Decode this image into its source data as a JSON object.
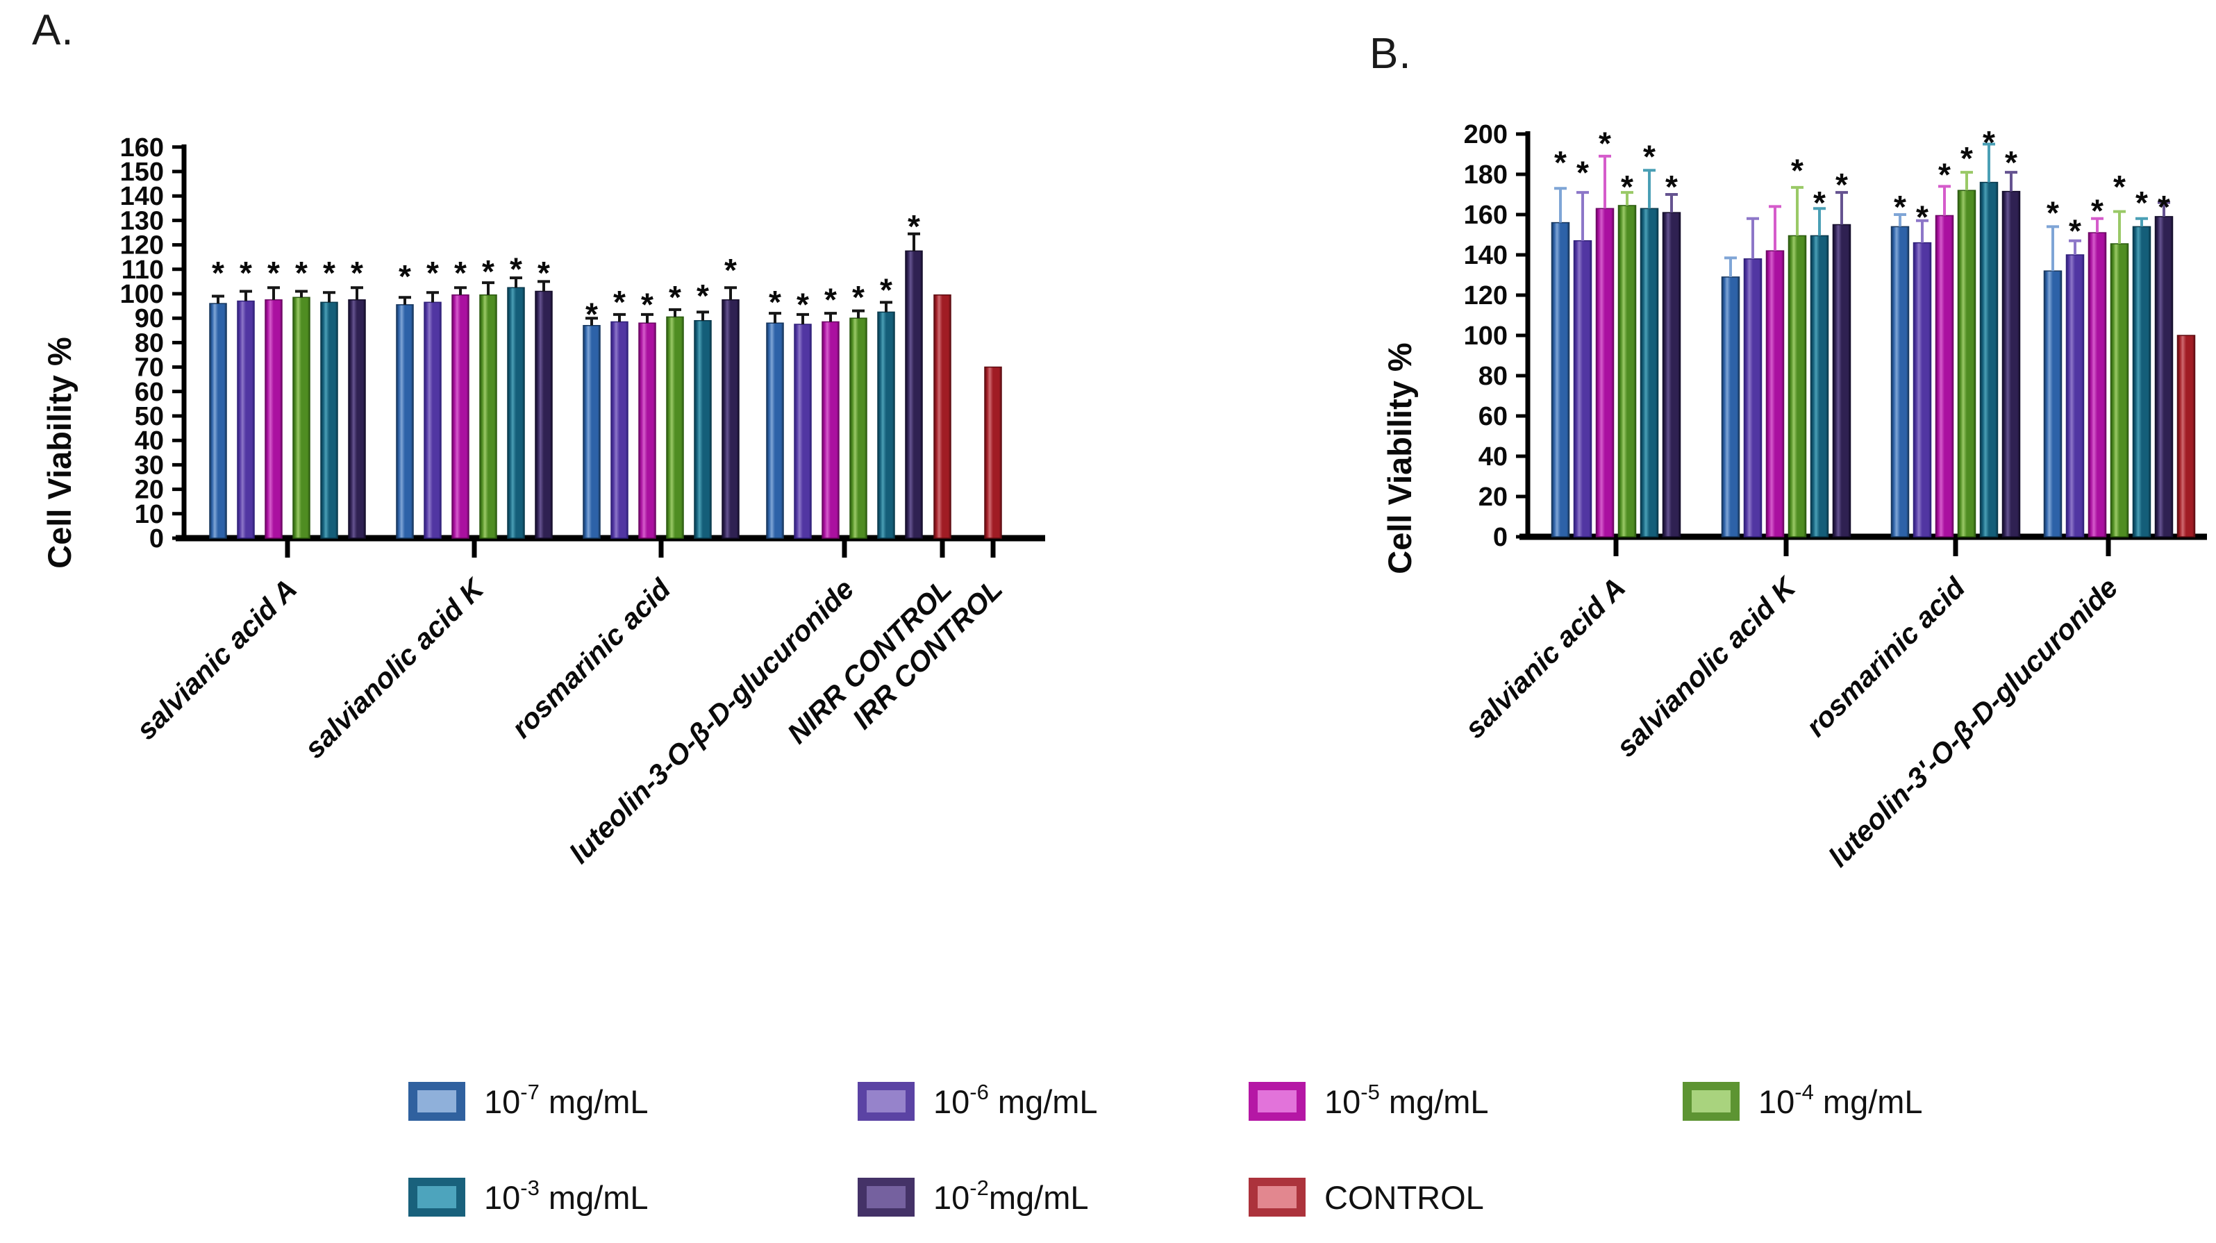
{
  "panels": {
    "a": {
      "label": "A."
    },
    "b": {
      "label": "B."
    }
  },
  "palette": {
    "c1e7": {
      "name": "blue",
      "main": "#2d62a8",
      "light": "#7fa5d6",
      "edge": "#17375e",
      "legend_outer": "#30619f",
      "legend_inner": "#8fb0da"
    },
    "c1e6": {
      "name": "purple",
      "main": "#5136a2",
      "light": "#8d77c8",
      "edge": "#31217a",
      "legend_outer": "#5b43a4",
      "legend_inner": "#9683cb"
    },
    "c1e5": {
      "name": "magenta",
      "main": "#aa10a0",
      "light": "#d55ccb",
      "edge": "#6d0764",
      "legend_outer": "#b517a5",
      "legend_inner": "#e273da"
    },
    "c1e4": {
      "name": "green",
      "main": "#4f8d22",
      "light": "#9ac967",
      "edge": "#2c5b10",
      "legend_outer": "#5d9432",
      "legend_inner": "#a9d37e"
    },
    "c1e3": {
      "name": "teal",
      "main": "#145e79",
      "light": "#4a9fb5",
      "edge": "#0a3a4d",
      "legend_outer": "#19617c",
      "legend_inner": "#4da4bd"
    },
    "c1e2": {
      "name": "dark-purple",
      "main": "#2f2152",
      "light": "#655390",
      "edge": "#150e2b",
      "legend_outer": "#443267",
      "legend_inner": "#75619f"
    },
    "control": {
      "name": "red",
      "main": "#a01c24",
      "light": "#cf6a70",
      "edge": "#5f0d12",
      "legend_outer": "#ac333c",
      "legend_inner": "#e2878f"
    }
  },
  "chart_data": [
    {
      "id": "A",
      "type": "bar",
      "panel": "A.",
      "ylabel": "Cell Viability %",
      "xlabel": "",
      "ylim": [
        0,
        160
      ],
      "ytick_step": 10,
      "grid": false,
      "legend_position": "shared-bottom",
      "categories": [
        "salvianic acid A",
        "salvianolic acid K",
        "rosmarinic acid",
        "luteolin-3-O-β-D-glucuronide",
        "NIRR CONTROL",
        "IRR CONTROL"
      ],
      "groups": [
        {
          "category": "salvianic acid A",
          "series": [
            "c1e7",
            "c1e6",
            "c1e5",
            "c1e4",
            "c1e3",
            "c1e2"
          ],
          "values": [
            96,
            97,
            97.5,
            98.5,
            96.5,
            97.5
          ],
          "errors": [
            3,
            4,
            5,
            2.5,
            4,
            5
          ],
          "stars": [
            112,
            112,
            112,
            112,
            112,
            112
          ]
        },
        {
          "category": "salvianolic acid K",
          "series": [
            "c1e7",
            "c1e6",
            "c1e5",
            "c1e4",
            "c1e3",
            "c1e2"
          ],
          "values": [
            95.5,
            96.5,
            99.5,
            99.5,
            102.5,
            101
          ],
          "errors": [
            3,
            4,
            3,
            5,
            4,
            4
          ],
          "stars": [
            110.5,
            112,
            112,
            112.5,
            113.5,
            112
          ]
        },
        {
          "category": "rosmarinic acid",
          "series": [
            "c1e7",
            "c1e6",
            "c1e5",
            "c1e4",
            "c1e3",
            "c1e2"
          ],
          "values": [
            87,
            88.5,
            88,
            90.5,
            89,
            97.5
          ],
          "errors": [
            3,
            3,
            3.5,
            3,
            3.5,
            5
          ],
          "stars": [
            95,
            100,
            99,
            102,
            102.5,
            113
          ]
        },
        {
          "category": "luteolin-3-O-β-D-glucuronide",
          "series": [
            "c1e7",
            "c1e6",
            "c1e5",
            "c1e4",
            "c1e3",
            "c1e2"
          ],
          "values": [
            88,
            87.5,
            88.5,
            90,
            92.5,
            117.5
          ],
          "errors": [
            4,
            4,
            3.5,
            3,
            4,
            7
          ],
          "stars": [
            100,
            99,
            101,
            102,
            105,
            131
          ]
        },
        {
          "category": "NIRR CONTROL",
          "series": [
            "control"
          ],
          "values": [
            99.5
          ],
          "errors": [
            null
          ],
          "stars": [
            null
          ]
        },
        {
          "category": "IRR CONTROL",
          "series": [
            "control"
          ],
          "values": [
            70
          ],
          "errors": [
            null
          ],
          "stars": [
            null
          ]
        }
      ]
    },
    {
      "id": "B",
      "type": "bar",
      "panel": "B.",
      "ylabel": "Cell Viability %",
      "xlabel": "",
      "ylim": [
        0,
        200
      ],
      "ytick_step": 20,
      "grid": false,
      "legend_position": "shared-bottom",
      "categories": [
        "salvianic acid A",
        "salvianolic acid K",
        "rosmarinic acid",
        "luteolin-3'-O-β-D-glucuronide"
      ],
      "groups": [
        {
          "category": "salvianic acid A",
          "series": [
            "c1e7",
            "c1e6",
            "c1e5",
            "c1e4",
            "c1e3",
            "c1e2"
          ],
          "values": [
            156,
            147,
            163,
            164.5,
            163,
            161
          ],
          "errors": [
            17,
            24,
            26,
            6.5,
            19,
            9
          ],
          "stars": [
            190,
            185,
            199.5,
            178,
            193,
            178
          ]
        },
        {
          "category": "salvianolic acid K",
          "series": [
            "c1e7",
            "c1e6",
            "c1e5",
            "c1e4",
            "c1e3",
            "c1e2"
          ],
          "values": [
            129,
            138,
            142,
            149.5,
            149.5,
            155
          ],
          "errors": [
            9.5,
            20,
            22,
            24,
            13.5,
            16
          ],
          "stars": [
            null,
            null,
            null,
            186,
            170,
            179
          ]
        },
        {
          "category": "rosmarinic acid",
          "series": [
            "c1e7",
            "c1e6",
            "c1e5",
            "c1e4",
            "c1e3",
            "c1e2"
          ],
          "values": [
            154,
            146,
            159.5,
            172,
            176,
            171.5
          ],
          "errors": [
            6,
            11,
            14.5,
            9,
            19,
            9.5
          ],
          "stars": [
            168,
            163,
            184,
            192,
            200,
            190
          ]
        },
        {
          "category": "luteolin-3'-O-β-D-glucuronide",
          "series": [
            "c1e7",
            "c1e6",
            "c1e5",
            "c1e4",
            "c1e3",
            "c1e2"
          ],
          "values": [
            132,
            140,
            151,
            145.5,
            154,
            159
          ],
          "errors": [
            22,
            7,
            7,
            16,
            4,
            7
          ],
          "stars": [
            165,
            156,
            166,
            178,
            170,
            168
          ]
        },
        {
          "category": "",
          "series": [
            "control"
          ],
          "values": [
            100
          ],
          "errors": [
            null
          ],
          "stars": [
            null
          ]
        }
      ]
    }
  ],
  "legend": {
    "rows": [
      [
        {
          "series": "c1e7",
          "base": "10",
          "exp": "-7",
          "unit": " mg/mL"
        },
        {
          "series": "c1e6",
          "base": "10",
          "exp": "-6",
          "unit": " mg/mL"
        },
        {
          "series": "c1e5",
          "base": "10",
          "exp": "-5",
          "unit": " mg/mL"
        },
        {
          "series": "c1e4",
          "base": "10",
          "exp": "-4",
          "unit": " mg/mL"
        }
      ],
      [
        {
          "series": "c1e3",
          "base": "10",
          "exp": "-3",
          "unit": " mg/mL"
        },
        {
          "series": "c1e2",
          "base": "10",
          "exp": "-2",
          "unit": "mg/mL"
        },
        {
          "series": "control",
          "label": "CONTROL"
        }
      ]
    ]
  }
}
